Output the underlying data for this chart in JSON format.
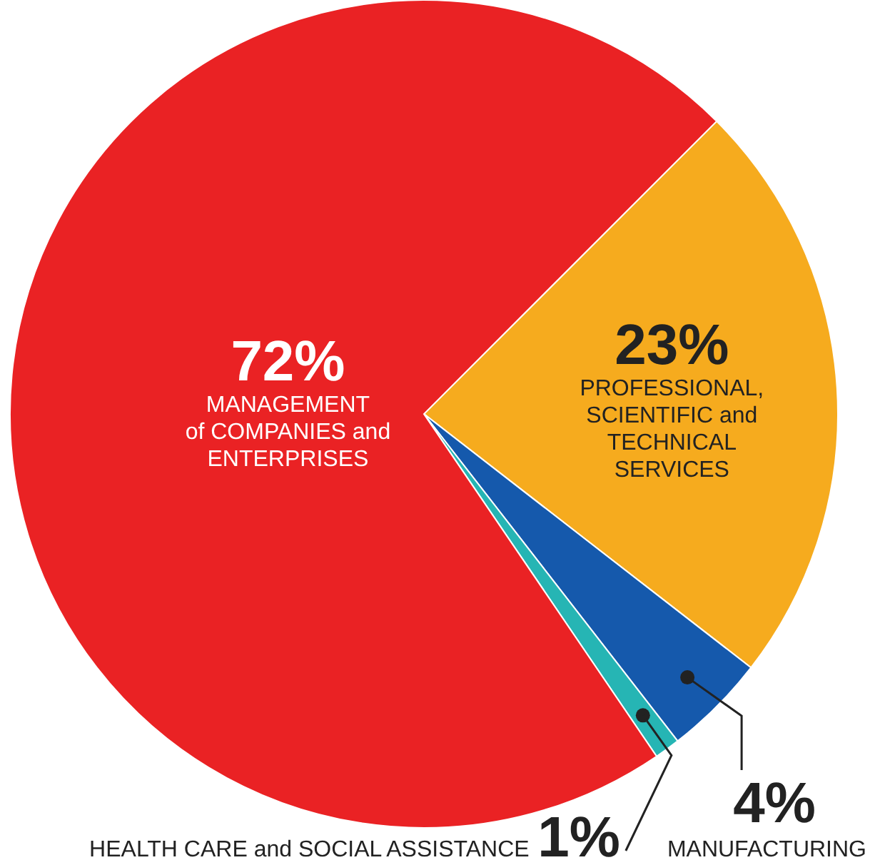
{
  "chart_data": {
    "type": "pie",
    "categories": [
      "PROFESSIONAL,\nSCIENTIFIC and\nTECHNICAL\nSERVICES",
      "MANUFACTURING",
      "HEALTH CARE and SOCIAL ASSISTANCE",
      "MANAGEMENT\nof COMPANIES and\nENTERPRISES"
    ],
    "values": [
      23,
      4,
      1,
      72
    ],
    "colors": [
      "#f6ab1e",
      "#1559ac",
      "#26b5b4",
      "#ea2224"
    ],
    "value_labels": [
      "23%",
      "4%",
      "1%",
      "72%"
    ]
  }
}
